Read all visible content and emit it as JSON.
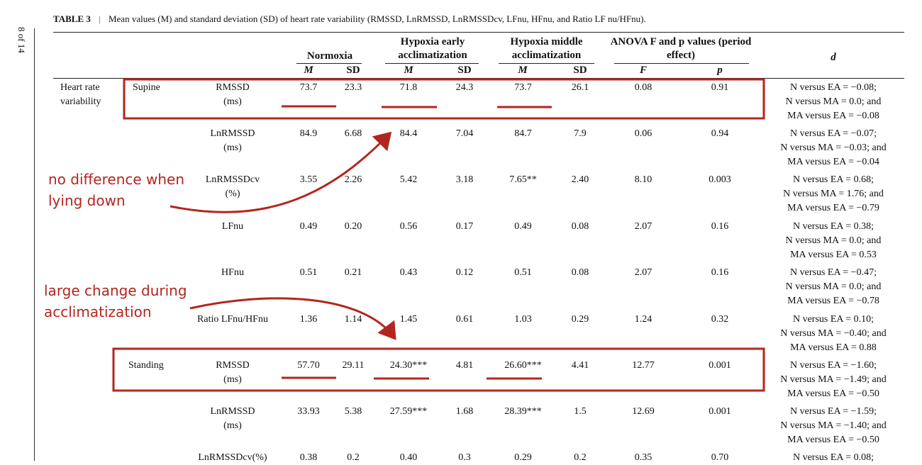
{
  "caption": {
    "label": "TABLE 3",
    "separator": "|",
    "text": "Mean values (M) and standard deviation (SD) of heart rate variability (RMSSD, LnRMSSD, LnRMSSDcv, LFnu, HFnu, and Ratio LF nu/HFnu)."
  },
  "page_marker": "8 of 14",
  "headers": {
    "normoxia": "Normoxia",
    "early": "Hypoxia early acclimatization",
    "middle": "Hypoxia middle acclimatization",
    "anova": "ANOVA F and p values (period effect)",
    "d": "d",
    "M": "M",
    "SD": "SD",
    "F": "F",
    "p": "p"
  },
  "section": "Heart rate variability",
  "rows": [
    {
      "pos": "Supine",
      "measure": "RMSSD",
      "unit": "(ms)",
      "nM": "73.7",
      "nSD": "23.3",
      "eM": "71.8",
      "eSD": "24.3",
      "mM": "73.7",
      "mSD": "26.1",
      "F": "0.08",
      "p": "0.91",
      "d1": "N versus EA = −0.08;",
      "d2": "N versus MA = 0.0; and",
      "d3": "MA versus EA = −0.08"
    },
    {
      "pos": "",
      "measure": "LnRMSSD",
      "unit": "(ms)",
      "nM": "84.9",
      "nSD": "6.68",
      "eM": "84.4",
      "eSD": "7.04",
      "mM": "84.7",
      "mSD": "7.9",
      "F": "0.06",
      "p": "0.94",
      "d1": "N versus EA = −0.07;",
      "d2": "N versus MA = −0.03; and",
      "d3": "MA versus EA = −0.04"
    },
    {
      "pos": "",
      "measure": "LnRMSSDcv",
      "unit": "(%)",
      "nM": "3.55",
      "nSD": "2.26",
      "eM": "5.42",
      "eSD": "3.18",
      "mM": "7.65**",
      "mSD": "2.40",
      "F": "8.10",
      "p": "0.003",
      "d1": "N versus EA = 0.68;",
      "d2": "N versus MA = 1.76; and",
      "d3": "MA versus EA = −0.79"
    },
    {
      "pos": "",
      "measure": "LFnu",
      "unit": "",
      "nM": "0.49",
      "nSD": "0.20",
      "eM": "0.56",
      "eSD": "0.17",
      "mM": "0.49",
      "mSD": "0.08",
      "F": "2.07",
      "p": "0.16",
      "d1": "N versus EA = 0.38;",
      "d2": "N versus MA = 0.0; and",
      "d3": "MA versus EA = 0.53"
    },
    {
      "pos": "",
      "measure": "HFnu",
      "unit": "",
      "nM": "0.51",
      "nSD": "0.21",
      "eM": "0.43",
      "eSD": "0.12",
      "mM": "0.51",
      "mSD": "0.08",
      "F": "2.07",
      "p": "0.16",
      "d1": "N versus EA = −0.47;",
      "d2": "N versus MA = 0.0; and",
      "d3": "MA versus EA = −0.78"
    },
    {
      "pos": "",
      "measure": "Ratio LFnu/HFnu",
      "unit": "",
      "nM": "1.36",
      "nSD": "1.14",
      "eM": "1.45",
      "eSD": "0.61",
      "mM": "1.03",
      "mSD": "0.29",
      "F": "1.24",
      "p": "0.32",
      "d1": "N versus EA = 0.10;",
      "d2": "N versus MA = −0.40; and",
      "d3": "MA versus EA = 0.88"
    },
    {
      "pos": "Standing",
      "measure": "RMSSD",
      "unit": "(ms)",
      "nM": "57.70",
      "nSD": "29.11",
      "eM": "24.30***",
      "eSD": "4.81",
      "mM": "26.60***",
      "mSD": "4.41",
      "F": "12.77",
      "p": "0.001",
      "d1": "N versus EA = −1.60;",
      "d2": "N versus MA = −1.49; and",
      "d3": "MA versus EA = −0.50"
    },
    {
      "pos": "",
      "measure": "LnRMSSD",
      "unit": "(ms)",
      "nM": "33.93",
      "nSD": "5.38",
      "eM": "27.59***",
      "eSD": "1.68",
      "mM": "28.39***",
      "mSD": "1.5",
      "F": "12.69",
      "p": "0.001",
      "d1": "N versus EA = −1.59;",
      "d2": "N versus MA = −1.40; and",
      "d3": "MA versus EA = −0.50"
    },
    {
      "pos": "",
      "measure": "LnRMSSDcv(%)",
      "unit": "",
      "nM": "0.38",
      "nSD": "0.2",
      "eM": "0.40",
      "eSD": "0.3",
      "mM": "0.29",
      "mSD": "0.2",
      "F": "0.35",
      "p": "0.70",
      "d1": "N versus EA = 0.08;",
      "d2": "",
      "d3": ""
    }
  ],
  "annotations": {
    "note1_line1": "no difference when",
    "note1_line2": "lying down",
    "note2_line1": "large change during",
    "note2_line2": "acclimatization",
    "color": "#b3261e"
  }
}
